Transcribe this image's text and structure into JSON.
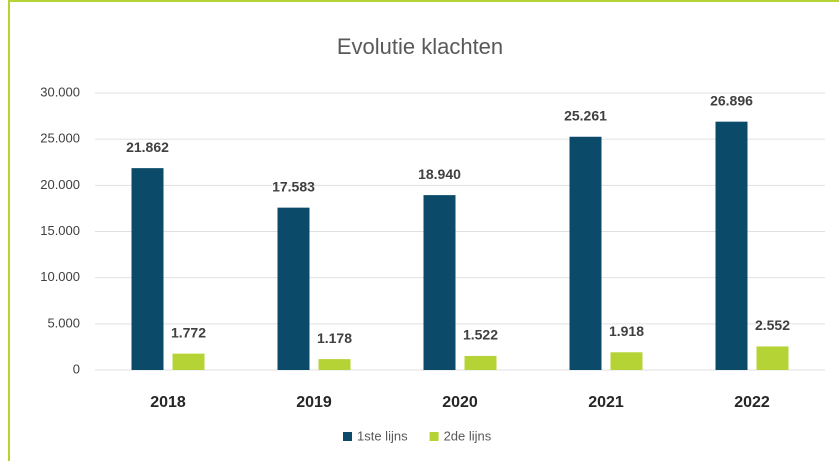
{
  "chart_data": {
    "type": "bar",
    "title": "Evolutie klachten",
    "categories": [
      "2018",
      "2019",
      "2020",
      "2021",
      "2022"
    ],
    "series": [
      {
        "name": "1ste lijns",
        "color": "#0b4a68",
        "values": [
          21862,
          17583,
          18940,
          25261,
          26896
        ],
        "value_labels": [
          "21.862",
          "17.583",
          "18.940",
          "25.261",
          "26.896"
        ]
      },
      {
        "name": "2de lijns",
        "color": "#b5d334",
        "values": [
          1772,
          1178,
          1522,
          1918,
          2552
        ],
        "value_labels": [
          "1.772",
          "1.178",
          "1.522",
          "1.918",
          "2.552"
        ]
      }
    ],
    "ylim": [
      0,
      30000
    ],
    "yticks": [
      {
        "value": 0,
        "label": "0"
      },
      {
        "value": 5000,
        "label": "5.000"
      },
      {
        "value": 10000,
        "label": "10.000"
      },
      {
        "value": 15000,
        "label": "15.000"
      },
      {
        "value": 20000,
        "label": "20.000"
      },
      {
        "value": 25000,
        "label": "25.000"
      },
      {
        "value": 30000,
        "label": "30.000"
      }
    ],
    "grid": true,
    "legend": "bottom"
  }
}
